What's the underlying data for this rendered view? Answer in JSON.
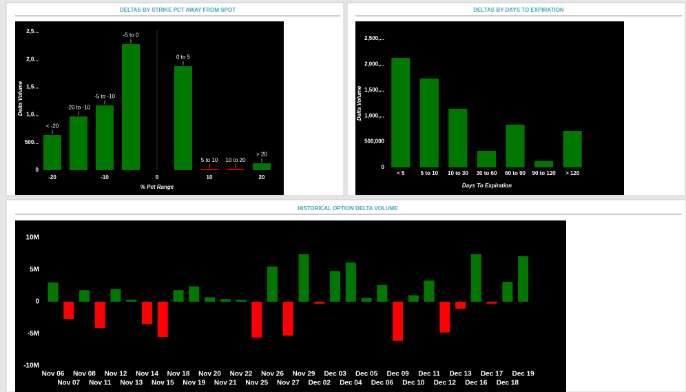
{
  "chart_data": [
    {
      "type": "bar",
      "title": "DELTAS BY STRIKE PCT AWAY FROM SPOT",
      "x": [
        -20,
        -15,
        -10,
        -5,
        5,
        10,
        15,
        20
      ],
      "values": [
        634,
        970,
        1169,
        2276,
        1878,
        20,
        20,
        124
      ],
      "labels": [
        "< -20",
        "-20 to -10",
        "-5 to -10",
        "-5 to 0",
        "0 to 5",
        "5 to 10",
        "10 to 20",
        "> 20"
      ],
      "colors": [
        "#007800",
        "#007800",
        "#007800",
        "#007800",
        "#007800",
        "#ff0000",
        "#ff0000",
        "#007800"
      ],
      "label_colors": [
        "#5fbf5f",
        "#5fbf5f",
        "#5fbf5f",
        "#5fbf5f",
        "#5fbf5f",
        "#ff3b3b",
        "#ff3b3b",
        "#5fbf5f"
      ],
      "xlim": [
        -24,
        24
      ],
      "xticks": [
        -20,
        -10,
        0,
        10,
        20
      ],
      "ylim": [
        0,
        2600
      ],
      "yticks": [
        0,
        {
          "value": 500,
          "label": "500..."
        },
        {
          "value": 1000,
          "label": "1,0..."
        },
        {
          "value": 1500,
          "label": "1,5..."
        },
        {
          "value": 2000,
          "label": "2,0..."
        },
        {
          "value": 2500,
          "label": "2,5..."
        }
      ],
      "xlabel": "% Pct Range",
      "ylabel": "Delta Volume"
    },
    {
      "type": "bar",
      "title": "DELTAS BY DAYS TO EXPIRATION",
      "categories": [
        "< 5",
        "5 to 10",
        "10 to 30",
        "30 to 60",
        "60 to 90",
        "90 to 120",
        "> 120"
      ],
      "values": [
        2125000,
        1725000,
        1136000,
        321000,
        829000,
        120000,
        709000
      ],
      "color": "#007800",
      "ylim": [
        0,
        2700000
      ],
      "yticks": [
        0,
        {
          "value": 500000,
          "label": "500,000"
        },
        {
          "value": 1000000,
          "label": "1,000,..."
        },
        {
          "value": 1500000,
          "label": "1,500,..."
        },
        {
          "value": 2000000,
          "label": "2,000,..."
        },
        {
          "value": 2500000,
          "label": "2,500,..."
        }
      ],
      "xlabel": "Days To Expiration",
      "ylabel": "Delta Volume"
    },
    {
      "type": "bar",
      "title": "HISTORICAL OPTION DELTA VOLUME",
      "categories": [
        "Nov 06",
        "Nov 07",
        "Nov 08",
        "Nov 11",
        "Nov 12",
        "Nov 13",
        "Nov 14",
        "Nov 15",
        "Nov 18",
        "Nov 19",
        "Nov 20",
        "Nov 21",
        "Nov 22",
        "Nov 25",
        "Nov 26",
        "Nov 27",
        "Nov 29",
        "Dec 02",
        "Dec 03",
        "Dec 04",
        "Dec 05",
        "Dec 06",
        "Dec 09",
        "Dec 10",
        "Dec 11",
        "Dec 12",
        "Dec 13",
        "Dec 16",
        "Dec 17",
        "Dec 18",
        "Dec 19"
      ],
      "values": [
        3000000,
        -2700000,
        1800000,
        -4100000,
        2000000,
        300000,
        -3500000,
        -5500000,
        1800000,
        2400000,
        700000,
        400000,
        300000,
        -5600000,
        5500000,
        -5300000,
        7400000,
        -300000,
        4800000,
        6100000,
        600000,
        2600000,
        -6100000,
        1000000,
        3300000,
        -4800000,
        -1100000,
        7400000,
        -300000,
        3100000,
        7100000
      ],
      "positive_color": "#007800",
      "negative_color": "#ff0000",
      "ylim": [
        -11000000,
        11600000
      ],
      "yticks": [
        {
          "value": -10000000,
          "label": "-10M"
        },
        {
          "value": -5000000,
          "label": "-5M"
        },
        0,
        {
          "value": 5000000,
          "label": "5M"
        },
        {
          "value": 10000000,
          "label": "10M"
        }
      ]
    }
  ]
}
